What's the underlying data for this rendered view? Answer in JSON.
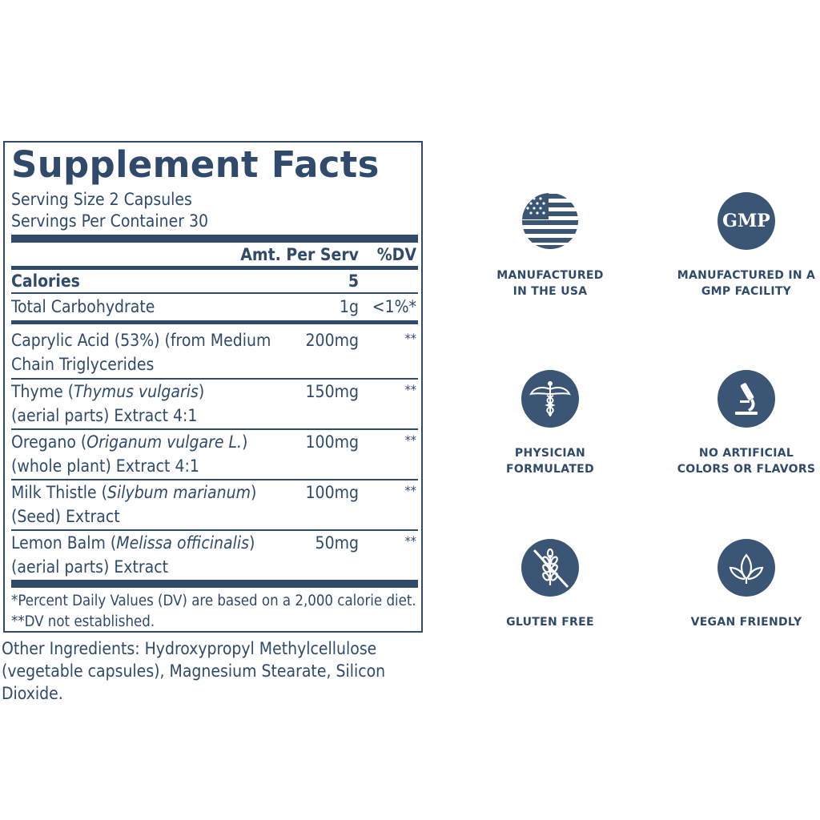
{
  "facts": {
    "title": "Supplement Facts",
    "serving_size": "Serving Size 2 Capsules",
    "servings_per_container": "Servings Per Container 30",
    "header_amt": "Amt. Per Serv",
    "header_dv": "%DV",
    "calories": {
      "label": "Calories",
      "amount": "5"
    },
    "carb": {
      "label": "Total Carbohydrate",
      "amount": "1g",
      "dv": "<1%*"
    },
    "ingredients": [
      {
        "line1_plain": "Caprylic Acid (53%) (from Medium",
        "line1_italic": "",
        "line1_after": "",
        "line2": "Chain Triglycerides",
        "amount": "200mg",
        "dv": "**"
      },
      {
        "line1_plain": "Thyme (",
        "line1_italic": "Thymus vulgaris",
        "line1_after": ")",
        "line2": "(aerial parts) Extract 4:1",
        "amount": "150mg",
        "dv": "**"
      },
      {
        "line1_plain": "Oregano (",
        "line1_italic": "Origanum vulgare L.",
        "line1_after": ")",
        "line2": "(whole plant) Extract 4:1",
        "amount": "100mg",
        "dv": "**"
      },
      {
        "line1_plain": "Milk Thistle (",
        "line1_italic": "Silybum marianum",
        "line1_after": ")",
        "line2": "(Seed) Extract",
        "amount": "100mg",
        "dv": "**"
      },
      {
        "line1_plain": "Lemon Balm (",
        "line1_italic": "Melissa officinalis",
        "line1_after": ")",
        "line2": "(aerial parts) Extract",
        "amount": "50mg",
        "dv": "**"
      }
    ],
    "footnote1": "*Percent Daily Values (DV) are based on a 2,000 calorie diet.",
    "footnote2": "**DV not established."
  },
  "other_ingredients": {
    "line1": "Other Ingredients: Hydroxypropyl Methylcellulose",
    "line2": "(vegetable capsules), Magnesium Stearate, Silicon Dioxide."
  },
  "badges": [
    {
      "icon": "usa-flag-icon",
      "line1": "MANUFACTURED",
      "line2": "IN THE USA"
    },
    {
      "icon": "gmp-icon",
      "icon_text": "GMP",
      "line1": "MANUFACTURED IN A",
      "line2": "GMP FACILITY"
    },
    {
      "icon": "caduceus-icon",
      "line1": "PHYSICIAN",
      "line2": "FORMULATED"
    },
    {
      "icon": "microscope-icon",
      "line1": "NO ARTIFICIAL",
      "line2": "COLORS OR FLAVORS"
    },
    {
      "icon": "no-wheat-icon",
      "line1": "GLUTEN FREE",
      "line2": ""
    },
    {
      "icon": "leaf-icon",
      "line1": "VEGAN FRIENDLY",
      "line2": ""
    }
  ],
  "colors": {
    "primary": "#2f4a6a",
    "icon_bg": "#3b5575"
  }
}
